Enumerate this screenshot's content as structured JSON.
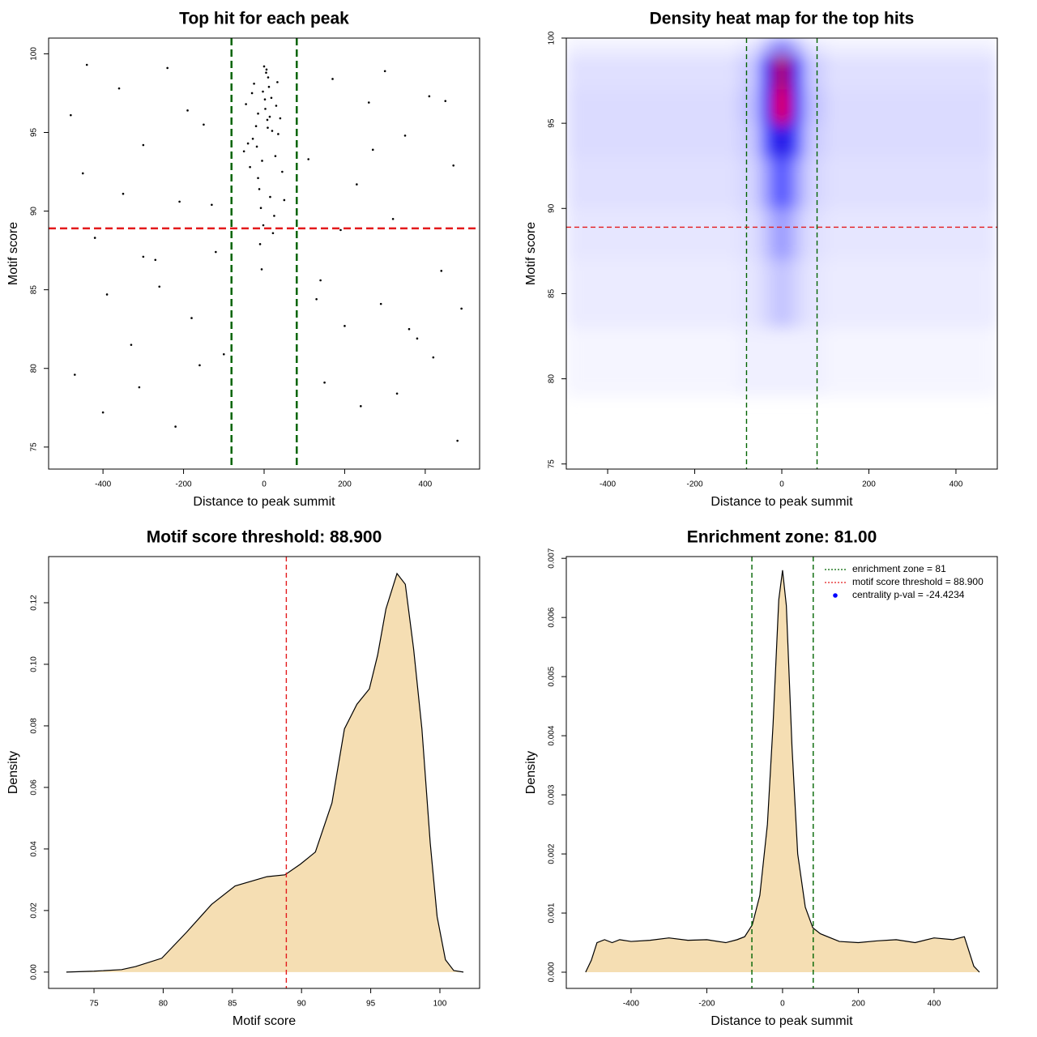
{
  "chart_data": [
    {
      "type": "scatter",
      "title": "Top hit for each peak",
      "xlabel": "Distance to peak summit",
      "ylabel": "Motif score",
      "xlim": [
        -535,
        535
      ],
      "ylim": [
        73.6,
        101.0
      ],
      "xticks": [
        -400,
        -200,
        0,
        200,
        400
      ],
      "yticks": [
        75,
        80,
        85,
        90,
        95,
        100
      ],
      "color": "#000000",
      "x": [
        -30,
        -15,
        5,
        20,
        -40,
        12,
        -5,
        30,
        45,
        -25,
        0,
        8,
        -12,
        18,
        -50,
        35,
        -8,
        3,
        25,
        -20,
        10,
        -35,
        15,
        -3,
        40,
        -18,
        6,
        28,
        -45,
        22,
        -10,
        2,
        50,
        -28,
        14,
        -6,
        33,
        -15,
        9,
        -2,
        -480,
        -450,
        -420,
        -390,
        -360,
        -330,
        -300,
        -270,
        -240,
        -210,
        -180,
        -150,
        -120,
        -100,
        110,
        140,
        170,
        200,
        230,
        260,
        290,
        320,
        350,
        380,
        410,
        440,
        470,
        490,
        -470,
        -400,
        -310,
        -220,
        -160,
        150,
        240,
        330,
        420,
        480,
        -440,
        -350,
        -260,
        -190,
        190,
        270,
        360,
        450,
        -300,
        300,
        -130,
        130
      ],
      "y": [
        97.5,
        96.2,
        98.8,
        95.1,
        94.3,
        97.9,
        93.2,
        96.7,
        92.5,
        98.1,
        99.2,
        95.8,
        91.4,
        97.2,
        93.8,
        94.9,
        90.2,
        96.5,
        89.7,
        95.4,
        98.5,
        92.8,
        90.9,
        97.6,
        95.9,
        94.1,
        99.0,
        93.5,
        96.8,
        88.6,
        87.9,
        97.1,
        90.7,
        94.6,
        96.0,
        86.3,
        98.2,
        92.1,
        95.3,
        89.1,
        96.1,
        92.4,
        88.3,
        84.7,
        97.8,
        81.5,
        94.2,
        86.9,
        99.1,
        90.6,
        83.2,
        95.5,
        87.4,
        80.9,
        93.3,
        85.6,
        98.4,
        82.7,
        91.7,
        96.9,
        84.1,
        89.5,
        94.8,
        81.9,
        97.3,
        86.2,
        92.9,
        83.8,
        79.6,
        77.2,
        78.8,
        76.3,
        80.2,
        79.1,
        77.6,
        78.4,
        80.7,
        75.4,
        99.3,
        91.1,
        85.2,
        96.4,
        88.8,
        93.9,
        82.5,
        97.0,
        87.1,
        98.9,
        90.4,
        84.4
      ],
      "vlines": [
        -81,
        81
      ],
      "vline_color": "#006400",
      "hlines": [
        88.9
      ],
      "hline_color": "#e31a1c"
    },
    {
      "type": "heatmap",
      "title": "Density heat map for the top hits",
      "xlabel": "Distance to peak summit",
      "ylabel": "Motif score",
      "xlim": [
        -495,
        495
      ],
      "ylim": [
        74.7,
        100
      ],
      "xticks": [
        -400,
        -200,
        0,
        200,
        400
      ],
      "yticks": [
        75,
        80,
        85,
        90,
        95,
        100
      ],
      "x_edges": [
        -495,
        -300,
        -100,
        -50,
        -20,
        20,
        50,
        100,
        300,
        495
      ],
      "y_edges": [
        79,
        83,
        87,
        90,
        93,
        95,
        97,
        99,
        100
      ],
      "z": [
        [
          0.02,
          0.02,
          0.03,
          0.03,
          0.03,
          0.03,
          0.03,
          0.02,
          0.02
        ],
        [
          0.04,
          0.04,
          0.05,
          0.08,
          0.12,
          0.08,
          0.05,
          0.04,
          0.04
        ],
        [
          0.05,
          0.05,
          0.06,
          0.12,
          0.2,
          0.12,
          0.06,
          0.05,
          0.05
        ],
        [
          0.06,
          0.06,
          0.08,
          0.2,
          0.35,
          0.2,
          0.08,
          0.06,
          0.06
        ],
        [
          0.07,
          0.07,
          0.1,
          0.35,
          0.55,
          0.35,
          0.1,
          0.07,
          0.07
        ],
        [
          0.07,
          0.07,
          0.12,
          0.5,
          0.95,
          0.5,
          0.12,
          0.07,
          0.07
        ],
        [
          0.06,
          0.06,
          0.1,
          0.45,
          0.85,
          0.45,
          0.1,
          0.06,
          0.06
        ],
        [
          0.03,
          0.03,
          0.05,
          0.15,
          0.25,
          0.15,
          0.05,
          0.03,
          0.03
        ]
      ],
      "zlim": [
        0,
        1
      ],
      "colors": [
        "#ffffff",
        "#0000ff",
        "#ff0000"
      ],
      "vlines": [
        -81,
        81
      ],
      "vline_color": "#006400",
      "hlines": [
        88.9
      ],
      "hline_color": "#e31a1c"
    },
    {
      "type": "density",
      "title": "Motif score threshold: 88.900",
      "xlabel": "Motif score",
      "ylabel": "Density",
      "xlim": [
        71.72,
        102.87
      ],
      "ylim": [
        -0.0053,
        0.135
      ],
      "xticks": [
        75,
        80,
        85,
        90,
        95,
        100
      ],
      "yticks": [
        {
          "value": 0,
          "label": "0.00"
        },
        0.02,
        0.04,
        0.06,
        0.08,
        {
          "value": 0.1,
          "label": "0.10"
        },
        0.12
      ],
      "color": "#f5deb3",
      "x": [
        73,
        75,
        77,
        78,
        79.9,
        81.7,
        83.5,
        85.2,
        87.5,
        88.8,
        89.9,
        91,
        92.2,
        93.1,
        94,
        94.9,
        95.5,
        96.1,
        96.9,
        97.5,
        98.1,
        98.7,
        99.3,
        99.8,
        100.4,
        101,
        101.7
      ],
      "y": [
        0,
        0.0003,
        0.0008,
        0.0018,
        0.0045,
        0.013,
        0.022,
        0.028,
        0.031,
        0.0316,
        0.035,
        0.039,
        0.055,
        0.079,
        0.087,
        0.092,
        0.103,
        0.118,
        0.1295,
        0.126,
        0.105,
        0.079,
        0.042,
        0.018,
        0.004,
        0.0005,
        0
      ],
      "vlines": [
        88.9
      ],
      "vline_color": "#e31a1c"
    },
    {
      "type": "density",
      "title": "Enrichment zone: 81.00",
      "xlabel": "Distance to peak summit",
      "ylabel": "Density",
      "xlim": [
        -571,
        567
      ],
      "ylim": [
        -0.000274,
        0.00703
      ],
      "xticks": [
        -400,
        -200,
        0,
        200,
        400
      ],
      "yticks": [
        {
          "value": 0,
          "label": "0.000"
        },
        0.001,
        0.002,
        0.003,
        0.004,
        0.005,
        0.006,
        0.007
      ],
      "color": "#f5deb3",
      "x": [
        -520,
        -505,
        -490,
        -470,
        -450,
        -430,
        -400,
        -350,
        -300,
        -250,
        -200,
        -150,
        -120,
        -100,
        -80,
        -60,
        -40,
        -25,
        -10,
        0,
        10,
        25,
        40,
        60,
        80,
        100,
        150,
        200,
        250,
        300,
        350,
        400,
        450,
        480,
        495,
        505,
        520
      ],
      "y": [
        0,
        0.0002,
        0.0005,
        0.00055,
        0.0005,
        0.00055,
        0.00052,
        0.00054,
        0.00058,
        0.00054,
        0.00055,
        0.0005,
        0.00055,
        0.0006,
        0.0008,
        0.0013,
        0.0025,
        0.0042,
        0.0063,
        0.0068,
        0.0062,
        0.0038,
        0.002,
        0.0011,
        0.00075,
        0.00065,
        0.00052,
        0.0005,
        0.00053,
        0.00055,
        0.0005,
        0.00058,
        0.00055,
        0.0006,
        0.0003,
        0.0001,
        0
      ],
      "vlines": [
        -81,
        81
      ],
      "vline_color": "#006400",
      "legend_position": "topright",
      "legend": [
        {
          "label": "enrichment zone = 81",
          "color": "#006400",
          "style": "dotted"
        },
        {
          "label": "motif score threshold = 88.900",
          "color": "#e31a1c",
          "style": "dotted"
        },
        {
          "label": "centrality p-val = -24.4234",
          "color": "#0000ff",
          "style": "point"
        }
      ]
    }
  ]
}
